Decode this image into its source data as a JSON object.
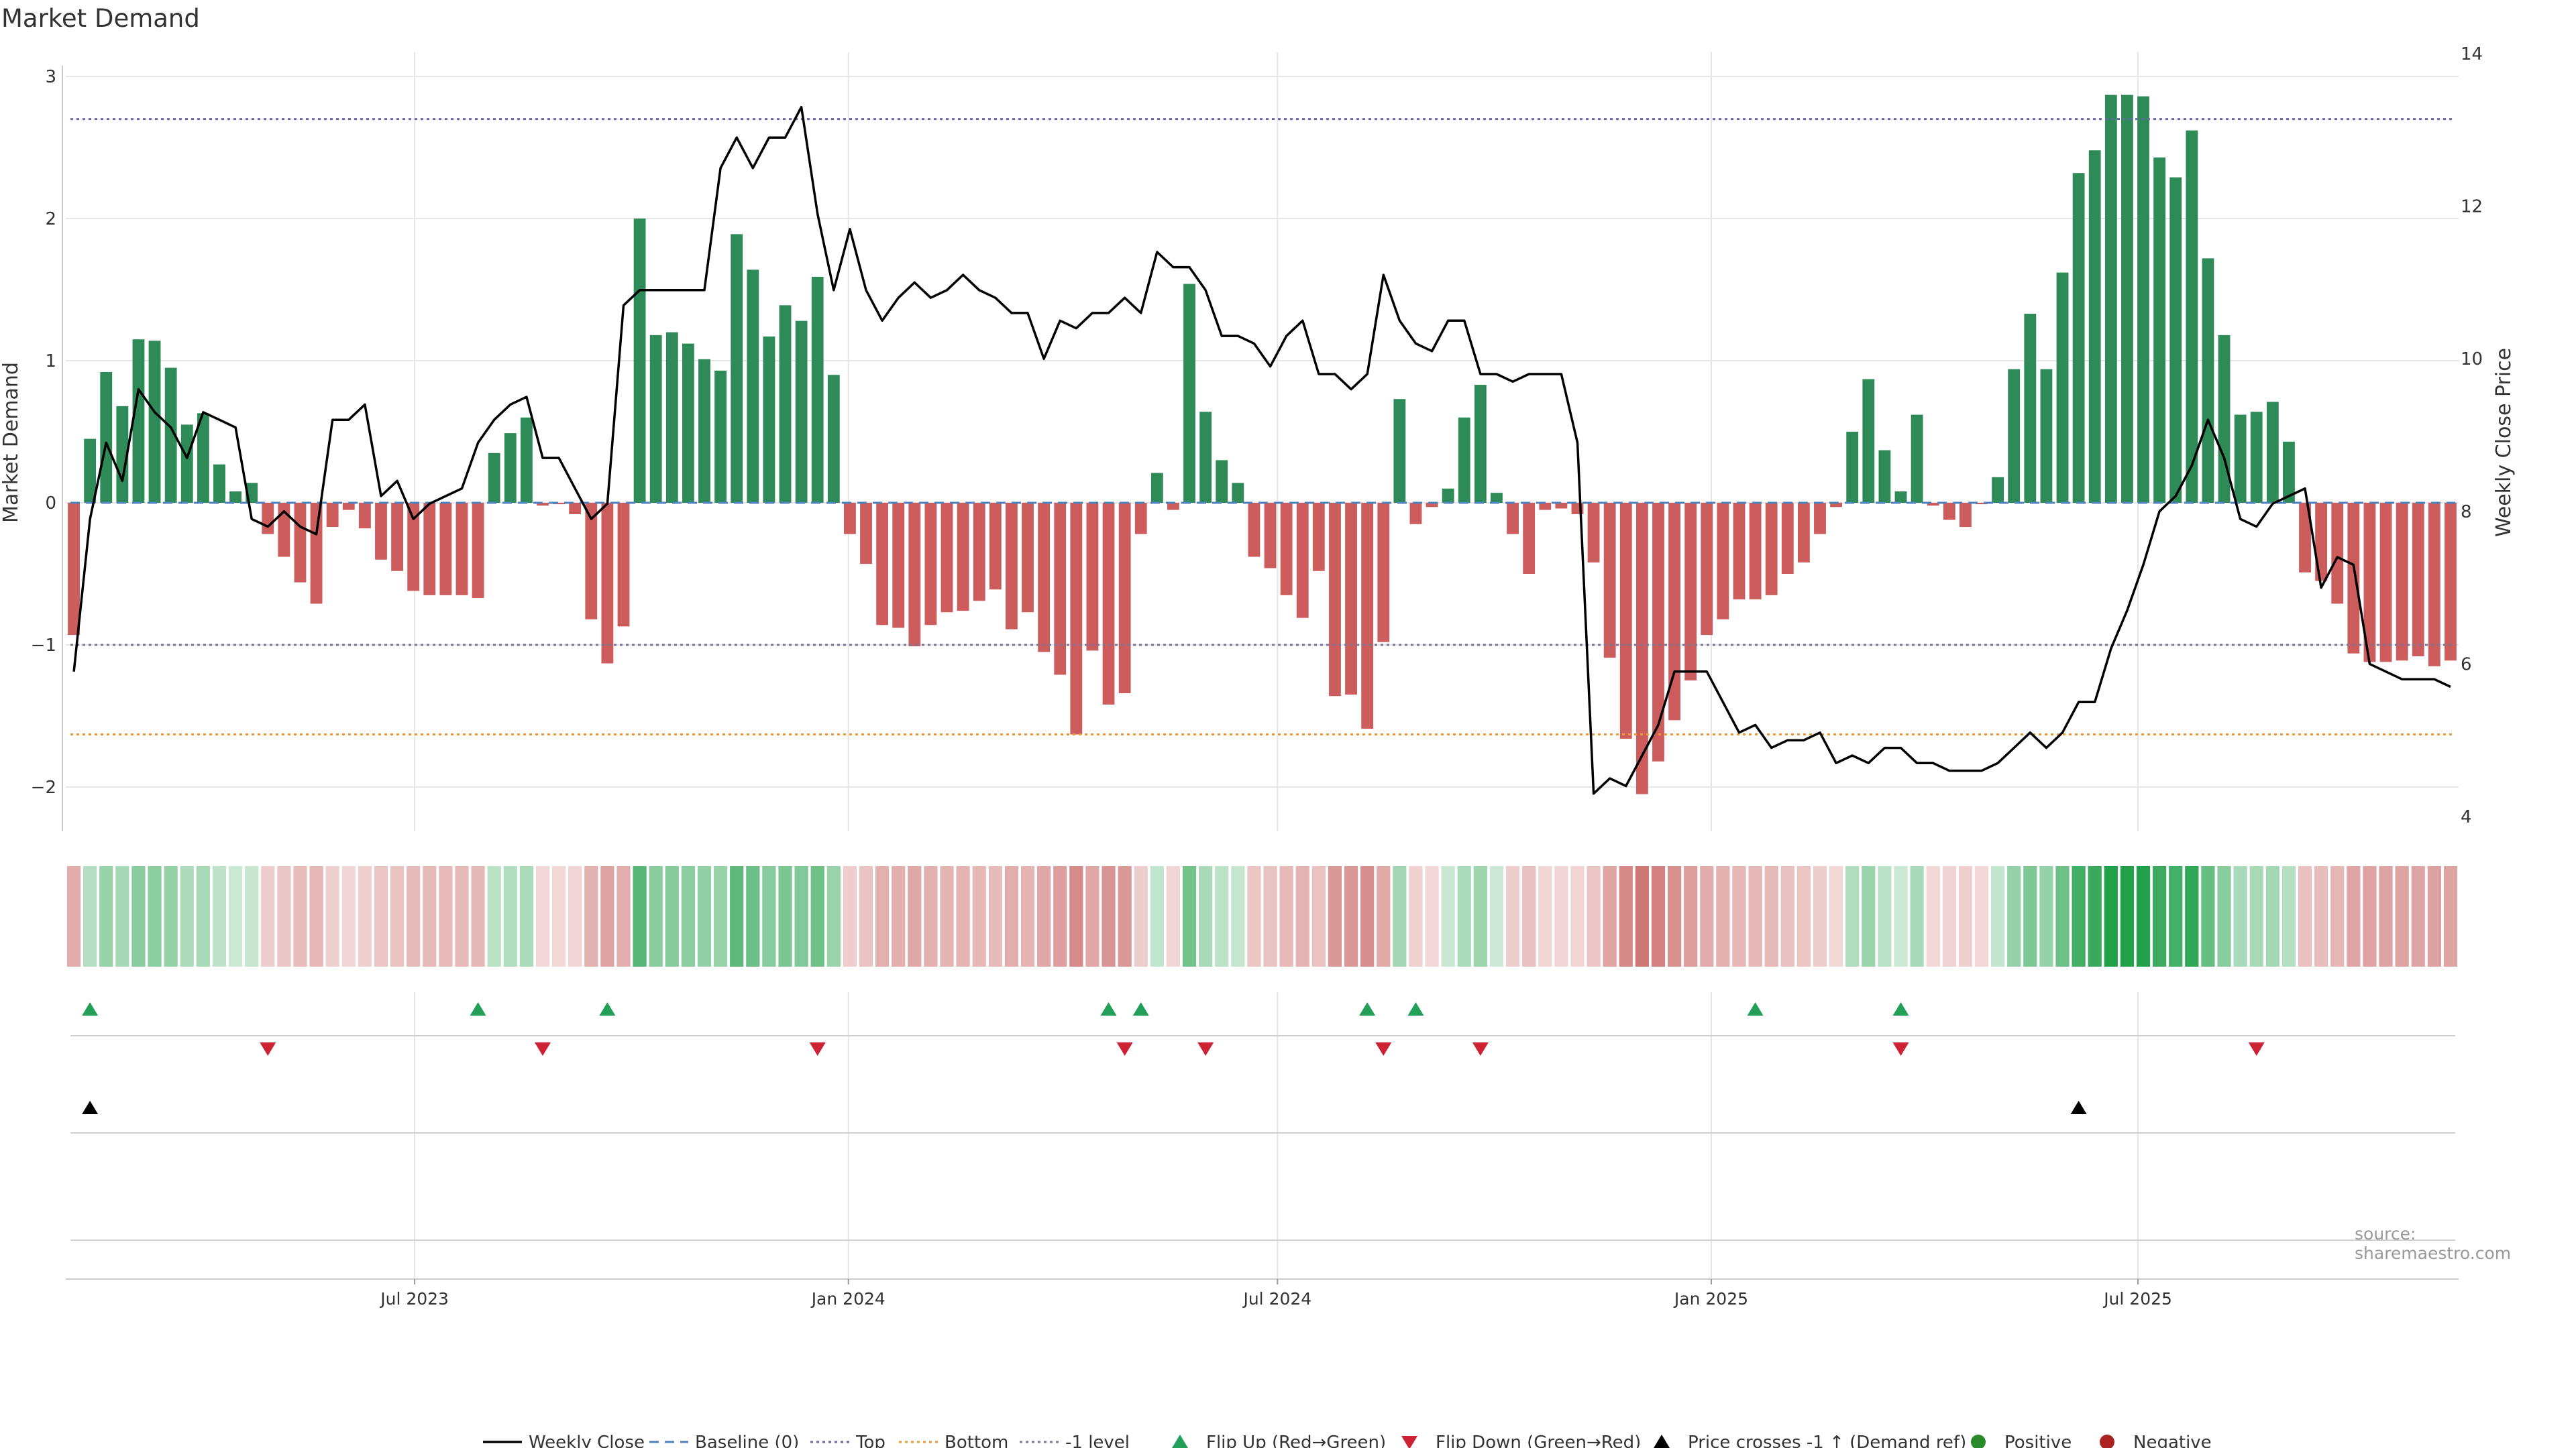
{
  "title": "Market Demand",
  "source": "source: sharemaestro.com",
  "colors": {
    "positive": "#2e8b57",
    "negative": "#cd5c5c",
    "line": "#000000",
    "top": "#6666aa",
    "bottom": "#ee9933",
    "neg1": "#777799",
    "baseline": "#4f81bd",
    "flip_up": "#22a05a",
    "flip_down": "#cc2233",
    "cross": "#000000",
    "grid": "#e6e6e6",
    "axis": "#cccccc"
  },
  "chart_data": {
    "type": "bar",
    "title": "Market Demand",
    "ylabel": "Market Demand",
    "y2label": "Weekly Close Price",
    "ylim": [
      -2.3,
      3.0
    ],
    "y2lim": [
      4,
      14
    ],
    "yticks": [
      -2,
      -1,
      0,
      1,
      2,
      3
    ],
    "y2ticks": [
      4,
      6,
      8,
      10,
      12,
      14
    ],
    "ytick_labels": [
      "−2",
      "−1",
      "0",
      "1",
      "2",
      "3"
    ],
    "y2tick_labels": [
      "4",
      "6",
      "8",
      "10",
      "12",
      "14"
    ],
    "levels": {
      "top": 2.7,
      "bottom": -1.63,
      "neg1": -1.0,
      "baseline": 0
    },
    "x_start": "2023-02-03",
    "x_end": "2025-11-14",
    "xticks": [
      {
        "date": "2023-07-01",
        "label": "Jul 2023"
      },
      {
        "date": "2024-01-01",
        "label": "Jan 2024"
      },
      {
        "date": "2024-07-01",
        "label": "Jul 2024"
      },
      {
        "date": "2025-01-01",
        "label": "Jan 2025"
      },
      {
        "date": "2025-07-01",
        "label": "Jul 2025"
      }
    ],
    "demand": [
      -0.93,
      0.45,
      0.92,
      0.68,
      1.15,
      1.14,
      0.95,
      0.55,
      0.63,
      0.27,
      0.08,
      0.14,
      -0.22,
      -0.38,
      -0.56,
      -0.71,
      -0.17,
      -0.05,
      -0.18,
      -0.4,
      -0.48,
      -0.62,
      -0.65,
      -0.65,
      -0.65,
      -0.67,
      0.35,
      0.49,
      0.6,
      -0.02,
      -0.01,
      -0.08,
      -0.82,
      -1.13,
      -0.87,
      2.0,
      1.18,
      1.2,
      1.12,
      1.01,
      0.93,
      1.89,
      1.64,
      1.17,
      1.39,
      1.28,
      1.59,
      0.9,
      -0.22,
      -0.43,
      -0.86,
      -0.88,
      -1.01,
      -0.86,
      -0.77,
      -0.76,
      -0.69,
      -0.61,
      -0.89,
      -0.77,
      -1.05,
      -1.21,
      -1.63,
      -1.04,
      -1.42,
      -1.34,
      -0.22,
      0.21,
      -0.05,
      1.54,
      0.64,
      0.3,
      0.14,
      -0.38,
      -0.46,
      -0.65,
      -0.81,
      -0.48,
      -1.36,
      -1.35,
      -1.59,
      -0.98,
      0.73,
      -0.15,
      -0.03,
      0.1,
      0.6,
      0.83,
      0.07,
      -0.22,
      -0.5,
      -0.05,
      -0.04,
      -0.08,
      -0.42,
      -1.09,
      -1.66,
      -2.05,
      -1.82,
      -1.53,
      -1.25,
      -0.93,
      -0.82,
      -0.68,
      -0.68,
      -0.65,
      -0.5,
      -0.42,
      -0.22,
      -0.03,
      0.5,
      0.87,
      0.37,
      0.08,
      0.62,
      -0.02,
      -0.12,
      -0.17,
      -0.01,
      0.18,
      0.94,
      1.33,
      0.94,
      1.62,
      2.32,
      2.48,
      2.87,
      2.87,
      2.86,
      2.43,
      2.29,
      2.62,
      1.72,
      1.18,
      0.62,
      0.64,
      0.71,
      0.43,
      -0.49,
      -0.55,
      -0.71,
      -1.06,
      -1.12,
      -1.12,
      -1.11,
      -1.08,
      -1.15,
      -1.11
    ],
    "close": [
      5.9,
      7.9,
      8.9,
      8.4,
      9.6,
      9.3,
      9.1,
      8.7,
      9.3,
      9.2,
      9.1,
      7.9,
      7.8,
      8.0,
      7.8,
      7.7,
      9.2,
      9.2,
      9.4,
      8.2,
      8.4,
      7.9,
      8.1,
      8.2,
      8.3,
      8.9,
      9.2,
      9.4,
      9.5,
      8.7,
      8.7,
      8.3,
      7.9,
      8.1,
      10.7,
      10.9,
      10.9,
      10.9,
      10.9,
      10.9,
      12.5,
      12.9,
      12.5,
      12.9,
      12.9,
      13.3,
      11.9,
      10.9,
      11.7,
      10.9,
      10.5,
      10.8,
      11.0,
      10.8,
      10.9,
      11.1,
      10.9,
      10.8,
      10.6,
      10.6,
      10.0,
      10.5,
      10.4,
      10.6,
      10.6,
      10.8,
      10.6,
      11.4,
      11.2,
      11.2,
      10.9,
      10.3,
      10.3,
      10.2,
      9.9,
      10.3,
      10.5,
      9.8,
      9.8,
      9.6,
      9.8,
      11.1,
      10.5,
      10.2,
      10.1,
      10.5,
      10.5,
      9.8,
      9.8,
      9.7,
      9.8,
      9.8,
      9.8,
      8.9,
      4.3,
      4.5,
      4.4,
      4.8,
      5.2,
      5.9,
      5.9,
      5.9,
      5.5,
      5.1,
      5.2,
      4.9,
      5.0,
      5.0,
      5.1,
      4.7,
      4.8,
      4.7,
      4.9,
      4.9,
      4.7,
      4.7,
      4.6,
      4.6,
      4.6,
      4.7,
      4.9,
      5.1,
      4.9,
      5.1,
      5.5,
      5.5,
      6.2,
      6.7,
      7.3,
      8.0,
      8.2,
      8.6,
      9.2,
      8.7,
      7.9,
      7.8,
      8.1,
      8.2,
      8.3,
      7.0,
      7.4,
      7.3,
      6.0,
      5.9,
      5.8,
      5.8,
      5.8,
      5.7
    ],
    "flip_up_weeks": [
      1,
      25,
      33,
      64,
      66,
      80,
      83,
      104,
      113
    ],
    "flip_down_weeks": [
      12,
      29,
      46,
      65,
      70,
      81,
      87,
      113,
      135
    ],
    "cross_up_weeks": [
      1,
      124
    ],
    "legend": [
      "Weekly Close",
      "Baseline (0)",
      "Top",
      "Bottom",
      "-1 level",
      "Flip Up (Red→Green)",
      "Flip Down (Green→Red)",
      "Price crosses -1 ↑ (Demand ref)",
      "Positive",
      "Negative"
    ]
  }
}
